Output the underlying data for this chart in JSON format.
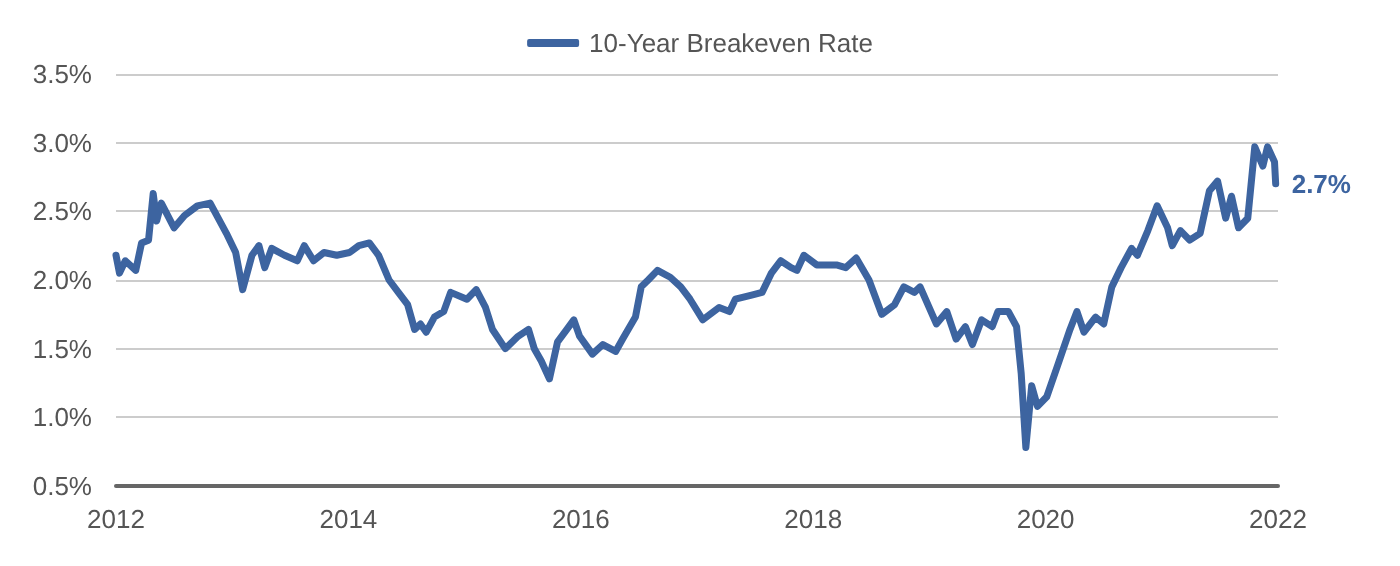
{
  "chart_data": {
    "type": "line",
    "legend": "top",
    "grid": "y",
    "marker": "none",
    "line_style": "solid",
    "xlim": [
      2012,
      2022
    ],
    "xticks": [
      2012,
      2014,
      2016,
      2018,
      2020,
      2022
    ],
    "ylim": [
      0.5,
      3.5
    ],
    "yticks": [
      {
        "value": 0.5,
        "label": "0.5%"
      },
      {
        "value": 1.0,
        "label": "1.0%"
      },
      {
        "value": 1.5,
        "label": "1.5%"
      },
      {
        "value": 2.0,
        "label": "2.0%"
      },
      {
        "value": 2.5,
        "label": "2.5%"
      },
      {
        "value": 3.0,
        "label": "3.0%"
      },
      {
        "value": 3.5,
        "label": "3.5%"
      }
    ],
    "annotations": [
      {
        "text": "2.7%",
        "x": 2021.98,
        "y": 2.7
      }
    ],
    "series": [
      {
        "name": "10-Year Breakeven Rate",
        "color": "#3d64a0",
        "x": [
          2012.0,
          2012.03,
          2012.08,
          2012.17,
          2012.22,
          2012.28,
          2012.32,
          2012.35,
          2012.39,
          2012.5,
          2012.59,
          2012.7,
          2012.81,
          2012.95,
          2013.03,
          2013.09,
          2013.17,
          2013.23,
          2013.28,
          2013.34,
          2013.45,
          2013.56,
          2013.62,
          2013.7,
          2013.79,
          2013.9,
          2014.01,
          2014.09,
          2014.18,
          2014.26,
          2014.35,
          2014.43,
          2014.51,
          2014.57,
          2014.62,
          2014.67,
          2014.74,
          2014.82,
          2014.88,
          2015.02,
          2015.1,
          2015.18,
          2015.24,
          2015.35,
          2015.46,
          2015.55,
          2015.6,
          2015.66,
          2015.73,
          2015.8,
          2015.88,
          2015.94,
          2015.99,
          2016.1,
          2016.19,
          2016.3,
          2016.36,
          2016.47,
          2016.52,
          2016.58,
          2016.66,
          2016.77,
          2016.86,
          2016.94,
          2017.05,
          2017.19,
          2017.28,
          2017.33,
          2017.47,
          2017.56,
          2017.64,
          2017.72,
          2017.81,
          2017.86,
          2017.92,
          2018.03,
          2018.2,
          2018.28,
          2018.37,
          2018.48,
          2018.59,
          2018.7,
          2018.78,
          2018.87,
          2018.92,
          2019.06,
          2019.15,
          2019.23,
          2019.31,
          2019.37,
          2019.45,
          2019.54,
          2019.59,
          2019.68,
          2019.75,
          2019.79,
          2019.83,
          2019.88,
          2019.93,
          2020.01,
          2020.1,
          2020.21,
          2020.27,
          2020.33,
          2020.43,
          2020.5,
          2020.57,
          2020.65,
          2020.74,
          2020.79,
          2020.88,
          2020.96,
          2021.05,
          2021.09,
          2021.16,
          2021.24,
          2021.33,
          2021.41,
          2021.48,
          2021.55,
          2021.6,
          2021.66,
          2021.74,
          2021.8,
          2021.87,
          2021.91,
          2021.97,
          2021.98
        ],
        "values": [
          2.18,
          2.05,
          2.14,
          2.07,
          2.27,
          2.29,
          2.63,
          2.43,
          2.56,
          2.38,
          2.47,
          2.54,
          2.56,
          2.34,
          2.2,
          1.93,
          2.18,
          2.25,
          2.09,
          2.23,
          2.18,
          2.14,
          2.25,
          2.14,
          2.2,
          2.18,
          2.2,
          2.25,
          2.27,
          2.18,
          2.0,
          1.91,
          1.82,
          1.64,
          1.68,
          1.62,
          1.73,
          1.77,
          1.91,
          1.86,
          1.93,
          1.8,
          1.64,
          1.5,
          1.59,
          1.64,
          1.5,
          1.41,
          1.28,
          1.55,
          1.64,
          1.71,
          1.59,
          1.46,
          1.53,
          1.48,
          1.57,
          1.73,
          1.95,
          2.0,
          2.07,
          2.02,
          1.95,
          1.86,
          1.71,
          1.8,
          1.77,
          1.86,
          1.89,
          1.91,
          2.05,
          2.14,
          2.09,
          2.07,
          2.18,
          2.11,
          2.11,
          2.09,
          2.16,
          2.0,
          1.75,
          1.82,
          1.95,
          1.91,
          1.95,
          1.68,
          1.77,
          1.57,
          1.66,
          1.53,
          1.71,
          1.66,
          1.77,
          1.77,
          1.66,
          1.32,
          0.78,
          1.23,
          1.08,
          1.15,
          1.37,
          1.64,
          1.77,
          1.62,
          1.73,
          1.68,
          1.95,
          2.09,
          2.23,
          2.18,
          2.36,
          2.54,
          2.38,
          2.25,
          2.36,
          2.29,
          2.34,
          2.65,
          2.72,
          2.45,
          2.61,
          2.38,
          2.45,
          2.97,
          2.83,
          2.97,
          2.86,
          2.7
        ]
      }
    ]
  }
}
